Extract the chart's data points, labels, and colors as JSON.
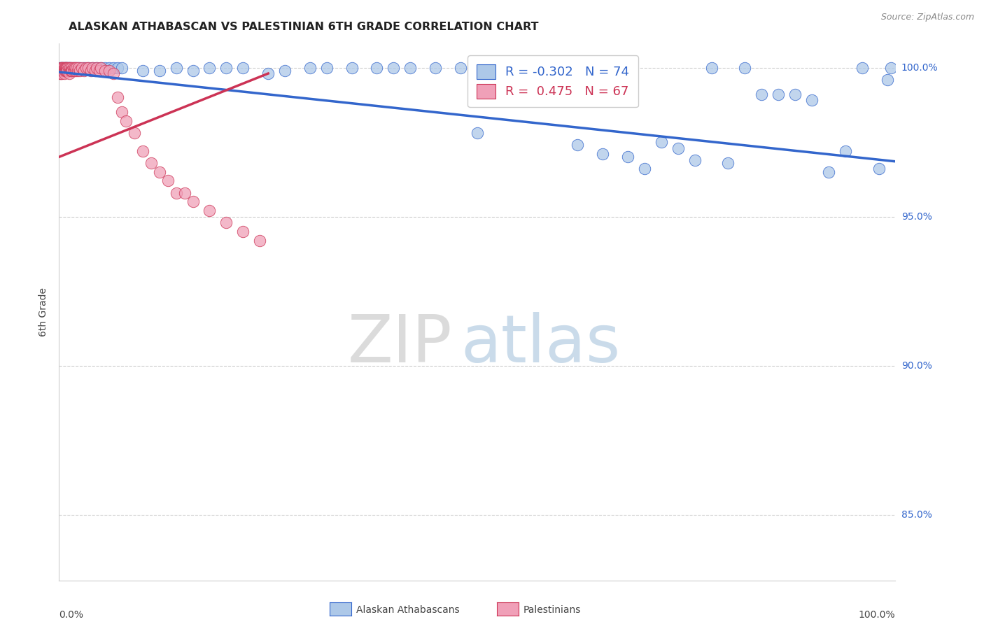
{
  "title": "ALASKAN ATHABASCAN VS PALESTINIAN 6TH GRADE CORRELATION CHART",
  "source": "Source: ZipAtlas.com",
  "ylabel": "6th Grade",
  "ytick_labels": [
    "85.0%",
    "90.0%",
    "95.0%",
    "100.0%"
  ],
  "ytick_values": [
    0.85,
    0.9,
    0.95,
    1.0
  ],
  "legend1_label": "R = -0.302   N = 74",
  "legend2_label": "R =  0.475   N = 67",
  "legend1_color": "#adc8e8",
  "legend2_color": "#f0a0b8",
  "trend1_color": "#3366cc",
  "trend2_color": "#cc3355",
  "background_color": "#ffffff",
  "watermark_zip": "ZIP",
  "watermark_atlas": "atlas",
  "blue_scatter_x": [
    0.001,
    0.002,
    0.003,
    0.003,
    0.004,
    0.005,
    0.005,
    0.006,
    0.007,
    0.008,
    0.009,
    0.01,
    0.011,
    0.012,
    0.013,
    0.015,
    0.017,
    0.02,
    0.022,
    0.025,
    0.03,
    0.035,
    0.04,
    0.045,
    0.05,
    0.055,
    0.06,
    0.065,
    0.07,
    0.075,
    0.1,
    0.12,
    0.14,
    0.16,
    0.18,
    0.2,
    0.22,
    0.25,
    0.27,
    0.3,
    0.32,
    0.35,
    0.38,
    0.4,
    0.42,
    0.45,
    0.48,
    0.5,
    0.52,
    0.55,
    0.58,
    0.6,
    0.62,
    0.64,
    0.65,
    0.66,
    0.68,
    0.7,
    0.72,
    0.74,
    0.76,
    0.78,
    0.8,
    0.82,
    0.84,
    0.86,
    0.88,
    0.9,
    0.92,
    0.94,
    0.96,
    0.98,
    0.99,
    0.995
  ],
  "blue_scatter_y": [
    1.0,
    1.0,
    1.0,
    0.999,
    1.0,
    1.0,
    0.999,
    1.0,
    1.0,
    1.0,
    1.0,
    1.0,
    1.0,
    1.0,
    1.0,
    1.0,
    1.0,
    1.0,
    1.0,
    1.0,
    1.0,
    1.0,
    1.0,
    1.0,
    1.0,
    1.0,
    1.0,
    1.0,
    1.0,
    1.0,
    0.999,
    0.999,
    1.0,
    0.999,
    1.0,
    1.0,
    1.0,
    0.998,
    0.999,
    1.0,
    1.0,
    1.0,
    1.0,
    1.0,
    1.0,
    1.0,
    1.0,
    0.978,
    1.0,
    1.0,
    1.0,
    1.0,
    0.974,
    1.0,
    0.971,
    1.0,
    0.97,
    0.966,
    0.975,
    0.973,
    0.969,
    1.0,
    0.968,
    1.0,
    0.991,
    0.991,
    0.991,
    0.989,
    0.965,
    0.972,
    1.0,
    0.966,
    0.996,
    1.0
  ],
  "pink_scatter_x": [
    0.001,
    0.001,
    0.002,
    0.002,
    0.002,
    0.003,
    0.003,
    0.003,
    0.004,
    0.004,
    0.005,
    0.005,
    0.006,
    0.006,
    0.006,
    0.007,
    0.007,
    0.008,
    0.008,
    0.009,
    0.009,
    0.01,
    0.01,
    0.011,
    0.012,
    0.012,
    0.013,
    0.014,
    0.015,
    0.015,
    0.016,
    0.017,
    0.018,
    0.019,
    0.02,
    0.021,
    0.022,
    0.023,
    0.025,
    0.027,
    0.03,
    0.032,
    0.035,
    0.038,
    0.04,
    0.043,
    0.045,
    0.048,
    0.05,
    0.055,
    0.06,
    0.065,
    0.07,
    0.075,
    0.08,
    0.09,
    0.1,
    0.11,
    0.12,
    0.13,
    0.14,
    0.15,
    0.16,
    0.18,
    0.2,
    0.22,
    0.24
  ],
  "pink_scatter_y": [
    0.999,
    0.998,
    1.0,
    0.999,
    0.998,
    1.0,
    0.999,
    0.998,
    1.0,
    0.999,
    1.0,
    0.999,
    1.0,
    0.999,
    0.998,
    1.0,
    0.999,
    1.0,
    0.999,
    1.0,
    0.999,
    1.0,
    0.999,
    1.0,
    0.999,
    0.998,
    1.0,
    0.999,
    1.0,
    0.999,
    0.999,
    1.0,
    0.999,
    1.0,
    0.999,
    1.0,
    0.999,
    1.0,
    0.999,
    1.0,
    0.999,
    1.0,
    1.0,
    0.999,
    1.0,
    0.999,
    1.0,
    0.999,
    1.0,
    0.999,
    0.999,
    0.998,
    0.99,
    0.985,
    0.982,
    0.978,
    0.972,
    0.968,
    0.965,
    0.962,
    0.958,
    0.958,
    0.955,
    0.952,
    0.948,
    0.945,
    0.942
  ],
  "blue_trendline_x": [
    0.0,
    1.0
  ],
  "blue_trendline_y": [
    0.9985,
    0.9685
  ],
  "pink_trendline_x": [
    0.0,
    0.25
  ],
  "pink_trendline_y": [
    0.97,
    0.998
  ],
  "xlim": [
    0.0,
    1.0
  ],
  "ylim": [
    0.828,
    1.008
  ]
}
